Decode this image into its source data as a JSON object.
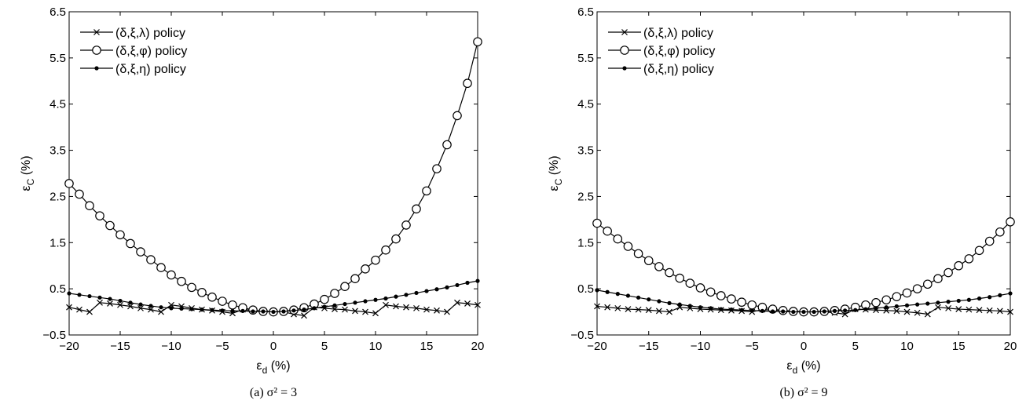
{
  "chart_data": [
    {
      "type": "line",
      "caption": "(a) σ² = 3",
      "xlabel": "ε",
      "xlabel_sub": "d",
      "xlabel_unit": "(%)",
      "ylabel": "ε",
      "ylabel_sub": "C",
      "ylabel_unit": "(%)",
      "xlim": [
        -20,
        20
      ],
      "ylim": [
        -0.5,
        6.5
      ],
      "xticks": [
        "-20",
        "-15",
        "-10",
        "-5",
        "0",
        "5",
        "10",
        "15",
        "20"
      ],
      "yticks": [
        "-0.5",
        "0.5",
        "1.5",
        "2.5",
        "3.5",
        "4.5",
        "5.5",
        "6.5"
      ],
      "legend_position": "top-left",
      "grid": false,
      "x": [
        -20,
        -19,
        -18,
        -17,
        -16,
        -15,
        -14,
        -13,
        -12,
        -11,
        -10,
        -9,
        -8,
        -7,
        -6,
        -5,
        -4,
        -3,
        -2,
        -1,
        0,
        1,
        2,
        3,
        4,
        5,
        6,
        7,
        8,
        9,
        10,
        11,
        12,
        13,
        14,
        15,
        16,
        17,
        18,
        19,
        20
      ],
      "series": [
        {
          "name": "(δ,ξ,λ) policy",
          "marker": "x",
          "values": [
            0.1,
            0.05,
            0.0,
            0.2,
            0.18,
            0.15,
            0.12,
            0.08,
            0.05,
            0.0,
            0.15,
            0.12,
            0.08,
            0.05,
            0.03,
            0.0,
            -0.03,
            0.05,
            0.03,
            0.02,
            0.0,
            0.0,
            -0.05,
            -0.08,
            0.1,
            0.08,
            0.06,
            0.05,
            0.02,
            0.0,
            -0.03,
            0.15,
            0.12,
            0.1,
            0.08,
            0.05,
            0.03,
            0.0,
            0.2,
            0.18,
            0.15
          ]
        },
        {
          "name": "(δ,ξ,φ) policy",
          "marker": "o",
          "values": [
            2.78,
            2.55,
            2.3,
            2.08,
            1.87,
            1.67,
            1.48,
            1.3,
            1.13,
            0.96,
            0.8,
            0.66,
            0.53,
            0.42,
            0.32,
            0.23,
            0.15,
            0.09,
            0.04,
            0.01,
            0.0,
            0.01,
            0.04,
            0.09,
            0.17,
            0.27,
            0.4,
            0.55,
            0.72,
            0.93,
            1.12,
            1.34,
            1.58,
            1.88,
            2.23,
            2.62,
            3.1,
            3.62,
            4.25,
            4.95,
            5.85
          ]
        },
        {
          "name": "(δ,ξ,η) policy",
          "marker": "dot",
          "values": [
            0.4,
            0.37,
            0.34,
            0.31,
            0.28,
            0.24,
            0.2,
            0.16,
            0.13,
            0.1,
            0.08,
            0.07,
            0.06,
            0.05,
            0.04,
            0.03,
            0.02,
            0.02,
            0.01,
            0.01,
            0.0,
            0.01,
            0.03,
            0.05,
            0.08,
            0.11,
            0.14,
            0.17,
            0.2,
            0.23,
            0.26,
            0.29,
            0.33,
            0.37,
            0.41,
            0.45,
            0.49,
            0.53,
            0.58,
            0.63,
            0.67
          ]
        }
      ]
    },
    {
      "type": "line",
      "caption": "(b) σ² = 9",
      "xlabel": "ε",
      "xlabel_sub": "d",
      "xlabel_unit": "(%)",
      "ylabel": "ε",
      "ylabel_sub": "C",
      "ylabel_unit": "(%)",
      "xlim": [
        -20,
        20
      ],
      "ylim": [
        -0.5,
        6.5
      ],
      "xticks": [
        "-20",
        "-15",
        "-10",
        "-5",
        "0",
        "5",
        "10",
        "15",
        "20"
      ],
      "yticks": [
        "-0.5",
        "0.5",
        "1.5",
        "2.5",
        "3.5",
        "4.5",
        "5.5",
        "6.5"
      ],
      "legend_position": "top-left",
      "grid": false,
      "x": [
        -20,
        -19,
        -18,
        -17,
        -16,
        -15,
        -14,
        -13,
        -12,
        -11,
        -10,
        -9,
        -8,
        -7,
        -6,
        -5,
        -4,
        -3,
        -2,
        -1,
        0,
        1,
        2,
        3,
        4,
        5,
        6,
        7,
        8,
        9,
        10,
        11,
        12,
        13,
        14,
        15,
        16,
        17,
        18,
        19,
        20
      ],
      "series": [
        {
          "name": "(δ,ξ,λ) policy",
          "marker": "x",
          "values": [
            0.12,
            0.1,
            0.08,
            0.06,
            0.05,
            0.04,
            0.02,
            0.0,
            0.1,
            0.08,
            0.06,
            0.05,
            0.04,
            0.03,
            0.02,
            0.0,
            0.05,
            0.04,
            0.03,
            0.02,
            0.0,
            0.0,
            0.0,
            -0.02,
            -0.05,
            0.06,
            0.05,
            0.04,
            0.03,
            0.02,
            0.0,
            -0.02,
            -0.05,
            0.1,
            0.08,
            0.06,
            0.05,
            0.04,
            0.03,
            0.02,
            0.0
          ]
        },
        {
          "name": "(δ,ξ,φ) policy",
          "marker": "o",
          "values": [
            1.92,
            1.75,
            1.58,
            1.42,
            1.26,
            1.11,
            0.98,
            0.85,
            0.73,
            0.62,
            0.52,
            0.43,
            0.35,
            0.28,
            0.21,
            0.15,
            0.1,
            0.06,
            0.03,
            0.01,
            0.0,
            0.0,
            0.01,
            0.03,
            0.06,
            0.1,
            0.15,
            0.2,
            0.26,
            0.33,
            0.41,
            0.5,
            0.6,
            0.72,
            0.85,
            1.0,
            1.15,
            1.33,
            1.53,
            1.73,
            1.95
          ]
        },
        {
          "name": "(δ,ξ,η) policy",
          "marker": "dot",
          "values": [
            0.47,
            0.43,
            0.39,
            0.35,
            0.31,
            0.27,
            0.23,
            0.19,
            0.16,
            0.13,
            0.1,
            0.08,
            0.06,
            0.05,
            0.04,
            0.03,
            0.02,
            0.01,
            0.01,
            0.0,
            0.0,
            0.0,
            0.01,
            0.02,
            0.03,
            0.04,
            0.06,
            0.08,
            0.1,
            0.12,
            0.14,
            0.16,
            0.18,
            0.2,
            0.22,
            0.24,
            0.26,
            0.29,
            0.32,
            0.36,
            0.4
          ]
        }
      ]
    }
  ]
}
